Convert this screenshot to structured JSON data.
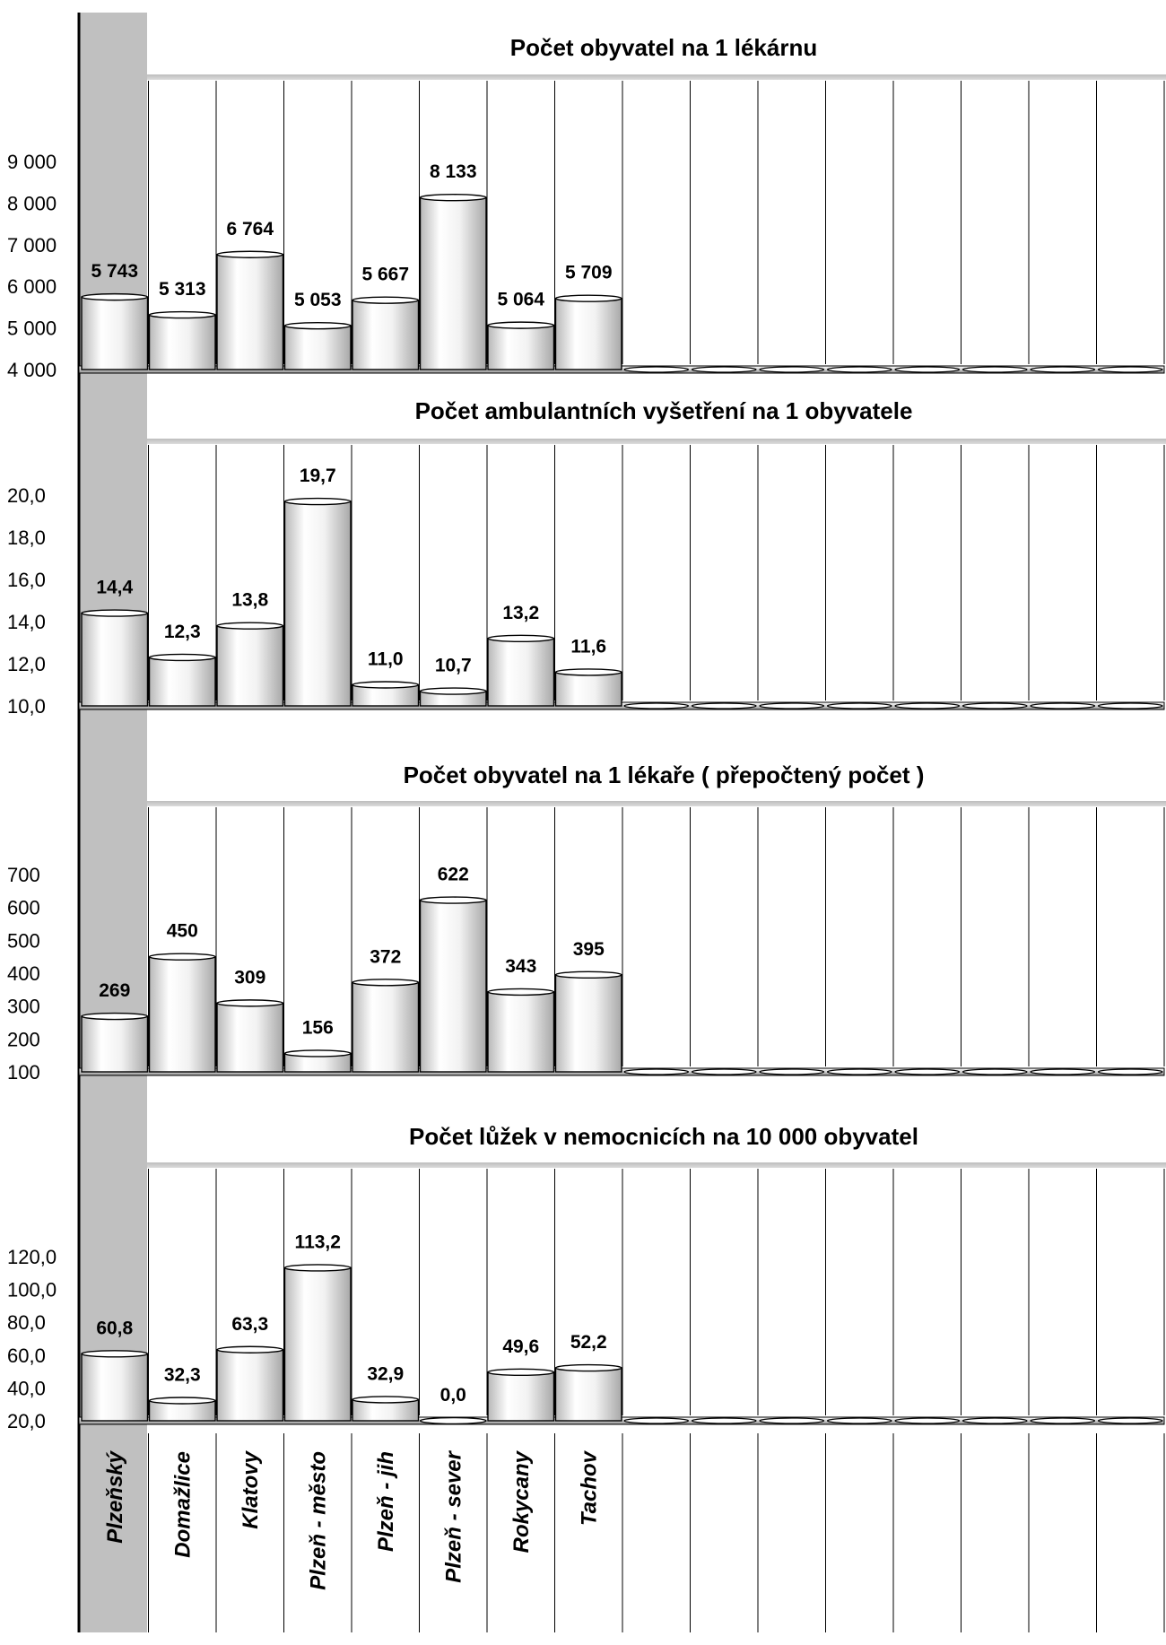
{
  "chart_data": [
    {
      "type": "bar",
      "title": "Počet obyvatel na 1 lékárnu",
      "categories": [
        "Plzeňský",
        "Domažlice",
        "Klatovy",
        "Plzeň - město",
        "Plzeň - jih",
        "Plzeň - sever",
        "Rokycany",
        "Tachov"
      ],
      "values": [
        5743,
        5313,
        6764,
        5053,
        5667,
        8133,
        5064,
        5709
      ],
      "value_labels": [
        "5 743",
        "5 313",
        "6 764",
        "5 053",
        "5 667",
        "8 133",
        "5 064",
        "5 709"
      ],
      "ylim": [
        4000,
        9000
      ],
      "ticks": [
        4000,
        5000,
        6000,
        7000,
        8000,
        9000
      ],
      "tick_labels": [
        "4 000",
        "5 000",
        "6 000",
        "7 000",
        "8 000",
        "9 000"
      ],
      "xlabel": "",
      "ylabel": ""
    },
    {
      "type": "bar",
      "title": "Počet ambulantních vyšetření na 1 obyvatele",
      "categories": [
        "Plzeňský",
        "Domažlice",
        "Klatovy",
        "Plzeň - město",
        "Plzeň - jih",
        "Plzeň - sever",
        "Rokycany",
        "Tachov"
      ],
      "values": [
        14.4,
        12.3,
        13.8,
        19.7,
        11.0,
        10.7,
        13.2,
        11.6
      ],
      "value_labels": [
        "14,4",
        "12,3",
        "13,8",
        "19,7",
        "11,0",
        "10,7",
        "13,2",
        "11,6"
      ],
      "ylim": [
        10,
        20
      ],
      "ticks": [
        10,
        12,
        14,
        16,
        18,
        20
      ],
      "tick_labels": [
        "10,0",
        "12,0",
        "14,0",
        "16,0",
        "18,0",
        "20,0"
      ],
      "xlabel": "",
      "ylabel": ""
    },
    {
      "type": "bar",
      "title": "Počet obyvatel na 1 lékaře ( přepočtený počet )",
      "categories": [
        "Plzeňský",
        "Domažlice",
        "Klatovy",
        "Plzeň - město",
        "Plzeň - jih",
        "Plzeň - sever",
        "Rokycany",
        "Tachov"
      ],
      "values": [
        269,
        450,
        309,
        156,
        372,
        622,
        343,
        395
      ],
      "value_labels": [
        "269",
        "450",
        "309",
        "156",
        "372",
        "622",
        "343",
        "395"
      ],
      "ylim": [
        100,
        700
      ],
      "ticks": [
        100,
        200,
        300,
        400,
        500,
        600,
        700
      ],
      "tick_labels": [
        "100",
        "200",
        "300",
        "400",
        "500",
        "600",
        "700"
      ],
      "xlabel": "",
      "ylabel": ""
    },
    {
      "type": "bar",
      "title": "Počet lůžek v nemocnicích na 10 000 obyvatel",
      "categories": [
        "Plzeňský",
        "Domažlice",
        "Klatovy",
        "Plzeň - město",
        "Plzeň - jih",
        "Plzeň - sever",
        "Rokycany",
        "Tachov"
      ],
      "values": [
        60.8,
        32.3,
        63.3,
        113.2,
        32.9,
        0.0,
        49.6,
        52.2
      ],
      "value_labels": [
        "60,8",
        "32,3",
        "63,3",
        "113,2",
        "32,9",
        "0,0",
        "49,6",
        "52,2"
      ],
      "ylim": [
        20,
        120
      ],
      "ticks": [
        20,
        40,
        60,
        80,
        100,
        120
      ],
      "tick_labels": [
        "20,0",
        "40,0",
        "60,0",
        "80,0",
        "100,0",
        "120,0"
      ],
      "xlabel": "",
      "ylabel": ""
    }
  ],
  "category_labels": [
    "Plzeňský",
    "Domažlice",
    "Klatovy",
    "Plzeň - město",
    "Plzeň - jih",
    "Plzeň - sever",
    "Rokycany",
    "Tachov"
  ],
  "colors": {
    "highlight_column": "#c0c0c0",
    "bar_fill_light": "#ffffff",
    "bar_fill_dark": "#cfcfcf",
    "axis": "#000000",
    "grid": "#000000"
  },
  "empty_slots": 8
}
